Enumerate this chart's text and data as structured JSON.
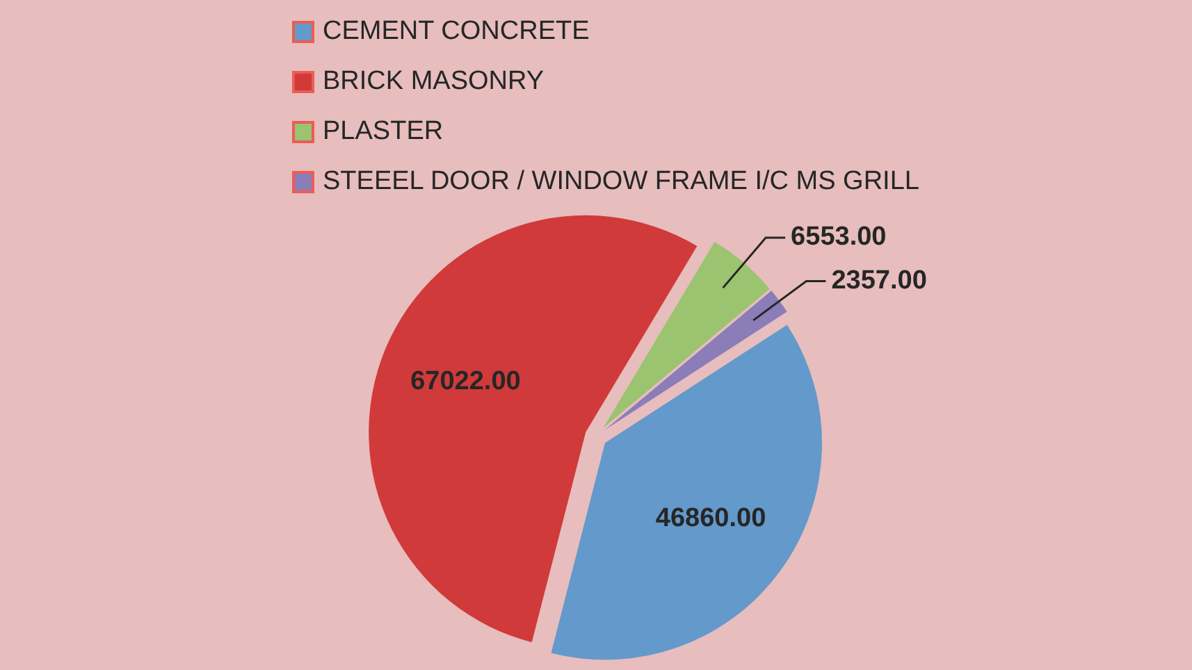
{
  "chart_data": {
    "type": "pie",
    "categories": [
      "CEMENT CONCRETE",
      "BRICK MASONRY",
      "PLASTER",
      "STEEEL DOOR / WINDOW FRAME I/C MS GRILL"
    ],
    "values": [
      46860,
      67022,
      6553,
      2357
    ],
    "value_labels": [
      "46860.00",
      "67022.00",
      "6553.00",
      "2357.00"
    ],
    "colors": [
      "#6399cb",
      "#d03a3a",
      "#9cc36f",
      "#8a7db8"
    ],
    "legend": "top"
  }
}
